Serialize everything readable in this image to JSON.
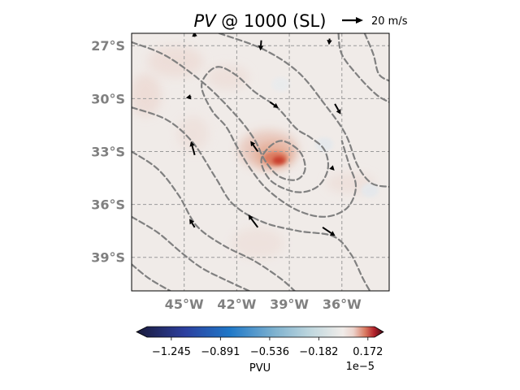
{
  "chart_data": {
    "type": "heatmap",
    "title_var": "PV",
    "title_rest": " @ 1000 (SL)",
    "quiver_key_label": "20 m/s",
    "lon_range": [
      -48.0,
      -33.3
    ],
    "lat_range": [
      -26.3,
      -40.9
    ],
    "lat_ticks": [
      {
        "value": -27,
        "label": "27°S"
      },
      {
        "value": -30,
        "label": "30°S"
      },
      {
        "value": -33,
        "label": "33°S"
      },
      {
        "value": -36,
        "label": "36°S"
      },
      {
        "value": -39,
        "label": "39°S"
      }
    ],
    "lon_ticks": [
      {
        "value": -45,
        "label": "45°W"
      },
      {
        "value": -42,
        "label": "42°W"
      },
      {
        "value": -39,
        "label": "39°W"
      },
      {
        "value": -36,
        "label": "36°W"
      }
    ],
    "grid": true,
    "colorbar": {
      "label": "PVU",
      "exponent": "1e−5",
      "range": [
        -1.42,
        0.22
      ],
      "ticks": [
        {
          "value": -1.245,
          "label": "−1.245"
        },
        {
          "value": -0.891,
          "label": "−0.891"
        },
        {
          "value": -0.536,
          "label": "−0.536"
        },
        {
          "value": -0.182,
          "label": "−0.182"
        },
        {
          "value": 0.172,
          "label": "0.172"
        }
      ],
      "stops": [
        {
          "v": -1.42,
          "c": "#1a1a3a"
        },
        {
          "v": -1.1,
          "c": "#2c3f9e"
        },
        {
          "v": -0.8,
          "c": "#1f78c8"
        },
        {
          "v": -0.5,
          "c": "#7fb2cf"
        },
        {
          "v": -0.25,
          "c": "#c3d9df"
        },
        {
          "v": -0.05,
          "c": "#f0ece9"
        },
        {
          "v": 0.02,
          "c": "#ecd3cc"
        },
        {
          "v": 0.1,
          "c": "#d9785f"
        },
        {
          "v": 0.16,
          "c": "#b1202a"
        },
        {
          "v": 0.22,
          "c": "#3f0a14"
        }
      ]
    },
    "pv_field": {
      "background": "#f0ebe8",
      "patches": [
        {
          "lon": -47.2,
          "lat": -29.8,
          "rx": 0.9,
          "ry": 1.2,
          "color": "#ecd8d1",
          "opacity": 0.75
        },
        {
          "lon": -45.5,
          "lat": -27.9,
          "rx": 1.6,
          "ry": 0.9,
          "color": "#ecd8d1",
          "opacity": 0.65
        },
        {
          "lon": -42.5,
          "lat": -28.8,
          "rx": 1.2,
          "ry": 0.7,
          "color": "#ecd8d1",
          "opacity": 0.55
        },
        {
          "lon": -44.5,
          "lat": -32.0,
          "rx": 0.9,
          "ry": 1.0,
          "color": "#ecd8d1",
          "opacity": 0.5
        },
        {
          "lon": -35.5,
          "lat": -34.8,
          "rx": 1.4,
          "ry": 0.6,
          "color": "#ecd8d1",
          "opacity": 0.55
        },
        {
          "lon": -40.8,
          "lat": -38.2,
          "rx": 1.5,
          "ry": 0.9,
          "color": "#ecd8d1",
          "opacity": 0.45
        },
        {
          "lon": -34.4,
          "lat": -35.2,
          "rx": 0.5,
          "ry": 0.4,
          "color": "#e4e8ec",
          "opacity": 0.9
        },
        {
          "lon": -37.0,
          "lat": -32.6,
          "rx": 0.5,
          "ry": 0.4,
          "color": "#e4e8ec",
          "opacity": 0.9
        },
        {
          "lon": -39.5,
          "lat": -29.2,
          "rx": 0.5,
          "ry": 0.4,
          "color": "#e8ebee",
          "opacity": 0.8
        },
        {
          "lon": -40.2,
          "lat": -32.9,
          "rx": 1.7,
          "ry": 1.1,
          "color": "#e8c4b8",
          "opacity": 0.85
        },
        {
          "lon": -39.9,
          "lat": -33.2,
          "rx": 1.1,
          "ry": 0.7,
          "color": "#e4a890",
          "opacity": 0.9
        },
        {
          "lon": -39.8,
          "lat": -33.4,
          "rx": 0.7,
          "ry": 0.4,
          "color": "#dc7a5e",
          "opacity": 0.95
        },
        {
          "lon": -39.6,
          "lat": -33.5,
          "rx": 0.35,
          "ry": 0.22,
          "color": "#c9412e",
          "opacity": 1.0
        }
      ]
    },
    "isobars": [
      [
        [
          -43.0,
          -26.3
        ],
        [
          -40.5,
          -27.2
        ],
        [
          -38.5,
          -28.5
        ],
        [
          -37.0,
          -30.3
        ],
        [
          -35.8,
          -32.0
        ],
        [
          -35.1,
          -33.8
        ],
        [
          -34.3,
          -34.8
        ],
        [
          -33.3,
          -35.0
        ]
      ],
      [
        [
          -36.2,
          -26.3
        ],
        [
          -36.0,
          -27.5
        ],
        [
          -35.0,
          -28.8
        ],
        [
          -34.0,
          -29.8
        ],
        [
          -33.3,
          -30.2
        ]
      ],
      [
        [
          -34.7,
          -26.3
        ],
        [
          -34.2,
          -27.5
        ],
        [
          -33.9,
          -28.6
        ],
        [
          -33.3,
          -29.0
        ]
      ],
      [
        [
          -48.0,
          -26.8
        ],
        [
          -46.0,
          -27.6
        ],
        [
          -43.8,
          -29.2
        ],
        [
          -42.0,
          -31.0
        ],
        [
          -41.0,
          -32.3
        ],
        [
          -40.4,
          -33.5
        ],
        [
          -39.6,
          -34.4
        ],
        [
          -38.6,
          -34.6
        ],
        [
          -38.1,
          -34.0
        ],
        [
          -38.4,
          -33.0
        ],
        [
          -39.4,
          -32.4
        ],
        [
          -40.2,
          -32.8
        ],
        [
          -40.6,
          -33.6
        ],
        [
          -40.0,
          -34.7
        ],
        [
          -38.6,
          -35.3
        ],
        [
          -37.4,
          -35.0
        ],
        [
          -36.8,
          -34.0
        ],
        [
          -37.0,
          -32.9
        ],
        [
          -37.8,
          -32.2
        ],
        [
          -38.6,
          -31.7
        ],
        [
          -39.7,
          -30.5
        ],
        [
          -41.0,
          -29.6
        ],
        [
          -42.0,
          -28.7
        ],
        [
          -43.0,
          -28.2
        ],
        [
          -43.7,
          -28.6
        ],
        [
          -44.0,
          -29.4
        ],
        [
          -43.4,
          -30.7
        ],
        [
          -42.6,
          -31.6
        ],
        [
          -42.0,
          -32.7
        ],
        [
          -41.2,
          -34.0
        ],
        [
          -40.2,
          -35.2
        ],
        [
          -38.6,
          -36.3
        ],
        [
          -37.0,
          -36.7
        ],
        [
          -35.7,
          -36.2
        ],
        [
          -35.2,
          -35.0
        ],
        [
          -35.6,
          -33.7
        ],
        [
          -36.0,
          -32.4
        ]
      ],
      [
        [
          -48.0,
          -30.5
        ],
        [
          -46.0,
          -31.2
        ],
        [
          -44.5,
          -32.5
        ],
        [
          -43.2,
          -34.5
        ],
        [
          -42.2,
          -36.0
        ],
        [
          -40.5,
          -37.0
        ],
        [
          -38.5,
          -37.5
        ],
        [
          -36.5,
          -37.8
        ],
        [
          -35.5,
          -38.8
        ],
        [
          -34.8,
          -40.2
        ],
        [
          -34.4,
          -40.9
        ]
      ],
      [
        [
          -48.0,
          -33.0
        ],
        [
          -46.5,
          -34.0
        ],
        [
          -45.3,
          -35.5
        ],
        [
          -44.3,
          -37.2
        ],
        [
          -42.8,
          -38.3
        ],
        [
          -41.0,
          -39.2
        ],
        [
          -39.5,
          -40.2
        ],
        [
          -38.7,
          -40.9
        ]
      ],
      [
        [
          -48.0,
          -36.7
        ],
        [
          -46.5,
          -37.6
        ],
        [
          -45.2,
          -38.7
        ],
        [
          -44.0,
          -39.6
        ],
        [
          -42.6,
          -40.3
        ],
        [
          -41.3,
          -40.9
        ]
      ],
      [
        [
          -48.0,
          -39.4
        ],
        [
          -47.0,
          -40.2
        ],
        [
          -45.8,
          -40.9
        ]
      ]
    ],
    "wind_vectors": [
      {
        "lon": -44.4,
        "lat": -26.5,
        "u": -0.3,
        "v": 2.5
      },
      {
        "lon": -40.6,
        "lat": -26.7,
        "u": -0.4,
        "v": -4.8
      },
      {
        "lon": -36.7,
        "lat": -26.6,
        "u": -0.3,
        "v": -3.0
      },
      {
        "lon": -44.6,
        "lat": -29.9,
        "u": -2.5,
        "v": -0.5
      },
      {
        "lon": -40.1,
        "lat": -30.2,
        "u": 4.0,
        "v": -2.8
      },
      {
        "lon": -36.4,
        "lat": -30.3,
        "u": 2.8,
        "v": -5.0
      },
      {
        "lon": -44.4,
        "lat": -33.2,
        "u": -1.8,
        "v": 6.5
      },
      {
        "lon": -40.8,
        "lat": -33.0,
        "u": -3.5,
        "v": 5.0
      },
      {
        "lon": -36.6,
        "lat": -33.9,
        "u": 1.5,
        "v": -1.5
      },
      {
        "lon": -44.4,
        "lat": -37.3,
        "u": -2.5,
        "v": 4.0
      },
      {
        "lon": -40.8,
        "lat": -37.3,
        "u": -4.5,
        "v": 6.0
      },
      {
        "lon": -37.1,
        "lat": -37.3,
        "u": 6.0,
        "v": -4.0
      }
    ]
  }
}
